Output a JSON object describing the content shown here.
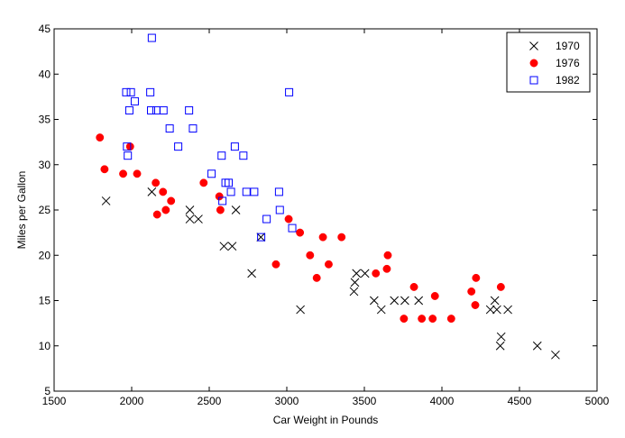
{
  "chart_data": {
    "type": "scatter",
    "title": "",
    "xlabel": "Car Weight in Pounds",
    "ylabel": "Miles per Gallon",
    "xlim": [
      1500,
      5000
    ],
    "ylim": [
      5,
      45
    ],
    "xticks": [
      1500,
      2000,
      2500,
      3000,
      3500,
      4000,
      4500,
      5000
    ],
    "yticks": [
      5,
      10,
      15,
      20,
      25,
      30,
      35,
      40,
      45
    ],
    "grid": false,
    "legend_position": "top-right",
    "series": [
      {
        "name": "1970",
        "marker": "x",
        "color": "#000000",
        "points": [
          [
            1835,
            26
          ],
          [
            2130,
            27
          ],
          [
            2375,
            25
          ],
          [
            2375,
            24
          ],
          [
            2430,
            24
          ],
          [
            2595,
            21
          ],
          [
            2648,
            21
          ],
          [
            2672,
            25
          ],
          [
            2774,
            18
          ],
          [
            2833,
            22
          ],
          [
            3088,
            14
          ],
          [
            3433,
            16
          ],
          [
            3439,
            17
          ],
          [
            3449,
            18
          ],
          [
            3504,
            18
          ],
          [
            3563,
            15
          ],
          [
            3609,
            14
          ],
          [
            3693,
            15
          ],
          [
            3761,
            15
          ],
          [
            3850,
            15
          ],
          [
            4312,
            14
          ],
          [
            4341,
            15
          ],
          [
            4354,
            14
          ],
          [
            4376,
            10
          ],
          [
            4382,
            11
          ],
          [
            4425,
            14
          ],
          [
            4615,
            10
          ],
          [
            4732,
            9
          ]
        ]
      },
      {
        "name": "1976",
        "marker": "circle",
        "color": "#ff0000",
        "points": [
          [
            1795,
            33
          ],
          [
            1825,
            29.5
          ],
          [
            1945,
            29
          ],
          [
            1990,
            32
          ],
          [
            2035,
            29
          ],
          [
            2155,
            28
          ],
          [
            2164,
            24.5
          ],
          [
            2202,
            27
          ],
          [
            2220,
            25
          ],
          [
            2254,
            26
          ],
          [
            2464,
            28
          ],
          [
            2565,
            26.5
          ],
          [
            2572,
            25
          ],
          [
            2930,
            19
          ],
          [
            3012,
            24
          ],
          [
            3085,
            22.5
          ],
          [
            3150,
            20
          ],
          [
            3193,
            17.5
          ],
          [
            3233,
            22
          ],
          [
            3270,
            19
          ],
          [
            3353,
            22
          ],
          [
            3574,
            18
          ],
          [
            3645,
            18.5
          ],
          [
            3651,
            20
          ],
          [
            3755,
            13
          ],
          [
            3820,
            16.5
          ],
          [
            3870,
            13
          ],
          [
            3940,
            13
          ],
          [
            3955,
            15.5
          ],
          [
            4060,
            13
          ],
          [
            4190,
            16
          ],
          [
            4215,
            14.5
          ],
          [
            4220,
            17.5
          ],
          [
            4380,
            16.5
          ]
        ]
      },
      {
        "name": "1982",
        "marker": "square",
        "color": "#0000ff",
        "points": [
          [
            1965,
            38
          ],
          [
            1970,
            32
          ],
          [
            1975,
            31
          ],
          [
            1985,
            36
          ],
          [
            1995,
            38
          ],
          [
            2020,
            37
          ],
          [
            2120,
            38
          ],
          [
            2125,
            36
          ],
          [
            2130,
            44
          ],
          [
            2160,
            36
          ],
          [
            2205,
            36
          ],
          [
            2245,
            34
          ],
          [
            2300,
            32
          ],
          [
            2370,
            36
          ],
          [
            2395,
            34
          ],
          [
            2515,
            29
          ],
          [
            2580,
            31
          ],
          [
            2585,
            26
          ],
          [
            2605,
            28
          ],
          [
            2625,
            28
          ],
          [
            2640,
            27
          ],
          [
            2665,
            32
          ],
          [
            2720,
            31
          ],
          [
            2740,
            27
          ],
          [
            2790,
            27
          ],
          [
            2835,
            22
          ],
          [
            2870,
            24
          ],
          [
            2950,
            27
          ],
          [
            2955,
            25
          ],
          [
            3015,
            38
          ],
          [
            3035,
            23
          ]
        ]
      }
    ]
  }
}
